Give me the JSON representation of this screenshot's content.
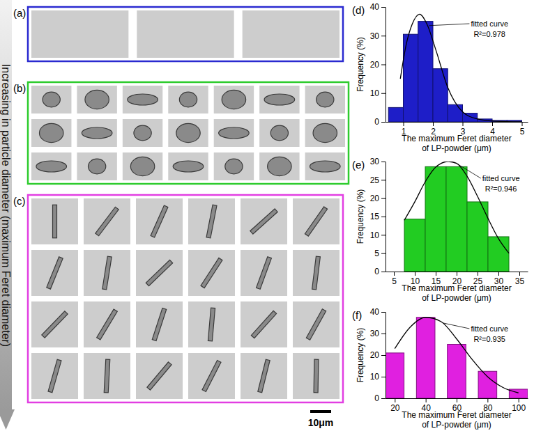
{
  "figure": {
    "side_label": "Increasing in particle diameter (maximum Feret diameter)",
    "scale_bar": "10μm",
    "panels": [
      {
        "label": "(a)",
        "rows": 1,
        "cols": 3,
        "color": "#2a2ad0"
      },
      {
        "label": "(b)",
        "rows": 3,
        "cols": 7,
        "color": "#2ecc2e"
      },
      {
        "label": "(c)",
        "rows": 4,
        "cols": 6,
        "color": "#e23ee2"
      }
    ]
  },
  "chart_data": [
    {
      "type": "histogram",
      "title": "(d)",
      "ylabel": "Frequency (%)",
      "xlabel": [
        "The maximum Feret diameter",
        "of LP-powder (μm)"
      ],
      "bins": [
        0.5,
        1,
        1.5,
        2,
        2.5,
        3,
        3.5,
        4,
        4.5,
        5
      ],
      "values": [
        5,
        30.5,
        35,
        18.5,
        6,
        3,
        1,
        0.5,
        0.5
      ],
      "color": "#1e1ec8",
      "xlim": [
        0.4,
        5.2
      ],
      "xticks": [
        1,
        2,
        3,
        4,
        5
      ],
      "ylim": [
        0,
        40
      ],
      "yticks": [
        0,
        10,
        20,
        30,
        40
      ],
      "series": [
        {
          "name": "fitted curve",
          "type": "line",
          "color": "#000000",
          "x": [
            0.9,
            1.1,
            1.3,
            1.55,
            1.8,
            2.1,
            2.5,
            3,
            3.5,
            4,
            4.5,
            5
          ],
          "values": [
            15,
            27,
            34,
            37.5,
            34,
            25,
            12,
            3.5,
            1,
            0.3,
            0.1,
            0
          ]
        }
      ],
      "annotations": [
        "R²=0.978"
      ]
    },
    {
      "type": "histogram",
      "title": "(e)",
      "ylabel": "Frequency (%)",
      "xlabel": [
        "The maximum Feret diameter",
        "of LP-powder (μm)"
      ],
      "bins": [
        7.5,
        12.5,
        17.5,
        22.5,
        27.5,
        32.5
      ],
      "values": [
        14.3,
        28.6,
        28.6,
        19,
        9.5
      ],
      "color": "#22cc22",
      "xlim": [
        3,
        37
      ],
      "xticks": [
        5,
        10,
        15,
        20,
        25,
        30,
        35
      ],
      "ylim": [
        0,
        30
      ],
      "yticks": [
        0,
        5,
        10,
        15,
        20,
        25,
        30
      ],
      "series": [
        {
          "name": "fitted curve",
          "type": "line",
          "color": "#000000",
          "x": [
            7.5,
            10,
            12.5,
            15,
            18,
            20,
            22.5,
            25,
            27.5,
            30,
            32.5
          ],
          "values": [
            14,
            19,
            24.5,
            28.5,
            30,
            29.5,
            26,
            20.5,
            14.5,
            9,
            5
          ]
        }
      ],
      "annotations": [
        "R²=0.946"
      ]
    },
    {
      "type": "bar",
      "title": "(f)",
      "ylabel": "Frequency (%)",
      "xlabel": [
        "The maximum Feret diameter",
        "of LP-powder (μm)"
      ],
      "x": [
        20,
        40,
        60,
        80,
        100
      ],
      "values": [
        21,
        37.5,
        25,
        12.5,
        4.2
      ],
      "color": "#e020e0",
      "xlim": [
        14,
        106
      ],
      "xticks": [
        20,
        40,
        60,
        80,
        100
      ],
      "ylim": [
        0,
        40
      ],
      "yticks": [
        0,
        10,
        20,
        30,
        40
      ],
      "series": [
        {
          "name": "fitted curve",
          "type": "line",
          "color": "#000000",
          "x": [
            20,
            30,
            40,
            50,
            60,
            70,
            80,
            90,
            100
          ],
          "values": [
            23,
            33,
            37.5,
            35.5,
            27.5,
            18,
            10,
            5,
            2.5
          ]
        }
      ],
      "annotations": [
        "R²=0.935"
      ]
    }
  ]
}
